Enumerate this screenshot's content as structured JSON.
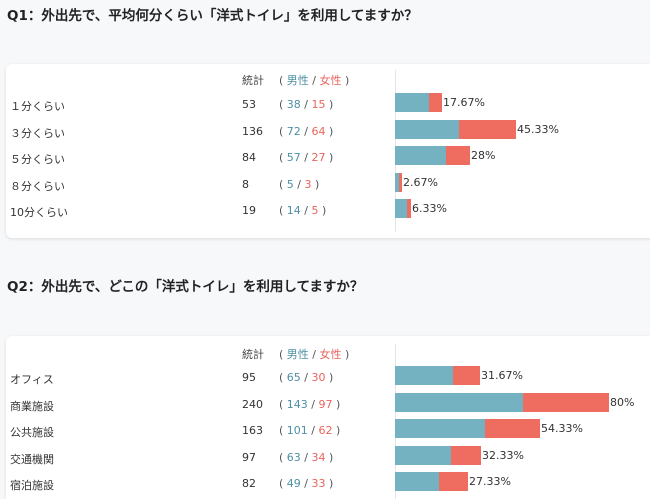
{
  "sections": [
    {
      "title": "Q1：外出先で、平均何分くらい「洋式トイレ」を利用してますか？",
      "header": {
        "total": "統計",
        "open": "(",
        "male": "男性",
        "slash": "/",
        "female": "女性",
        "close": ")"
      },
      "rows": [
        {
          "label": "１分くらい",
          "total": "53",
          "male": "38",
          "female": "15",
          "pct": "17.67%"
        },
        {
          "label": "３分くらい",
          "total": "136",
          "male": "72",
          "female": "64",
          "pct": "45.33%"
        },
        {
          "label": "５分くらい",
          "total": "84",
          "male": "57",
          "female": "27",
          "pct": "28%"
        },
        {
          "label": "８分くらい",
          "total": "8",
          "male": "5",
          "female": "3",
          "pct": "2.67%"
        },
        {
          "label": "10分くらい",
          "total": "19",
          "male": "14",
          "female": "5",
          "pct": "6.33%"
        }
      ]
    },
    {
      "title": "Q2：外出先で、どこの「洋式トイレ」を利用してますか？",
      "header": {
        "total": "統計",
        "open": "(",
        "male": "男性",
        "slash": "/",
        "female": "女性",
        "close": ")"
      },
      "rows": [
        {
          "label": "オフィス",
          "total": "95",
          "male": "65",
          "female": "30",
          "pct": "31.67%"
        },
        {
          "label": "商業施設",
          "total": "240",
          "male": "143",
          "female": "97",
          "pct": "80%"
        },
        {
          "label": "公共施設",
          "total": "163",
          "male": "101",
          "female": "62",
          "pct": "54.33%"
        },
        {
          "label": "交通機関",
          "total": "97",
          "male": "63",
          "female": "34",
          "pct": "32.33%"
        },
        {
          "label": "宿泊施設",
          "total": "82",
          "male": "49",
          "female": "33",
          "pct": "27.33%"
        }
      ]
    }
  ],
  "chart_data": [
    {
      "type": "bar",
      "title": "Q1：外出先で、平均何分くらい「洋式トイレ」を利用してますか？",
      "categories": [
        "１分くらい",
        "３分くらい",
        "５分くらい",
        "８分くらい",
        "10分くらい"
      ],
      "series": [
        {
          "name": "男性",
          "values": [
            38,
            72,
            57,
            5,
            14
          ],
          "color": "#74b1c1"
        },
        {
          "name": "女性",
          "values": [
            15,
            64,
            27,
            3,
            5
          ],
          "color": "#ef6c61"
        }
      ],
      "totals": [
        53,
        136,
        84,
        8,
        19
      ],
      "percent": [
        17.67,
        45.33,
        28,
        2.67,
        6.33
      ]
    },
    {
      "type": "bar",
      "title": "Q2：外出先で、どこの「洋式トイレ」を利用してますか？",
      "categories": [
        "オフィス",
        "商業施設",
        "公共施設",
        "交通機関",
        "宿泊施設"
      ],
      "series": [
        {
          "name": "男性",
          "values": [
            65,
            143,
            101,
            63,
            49
          ],
          "color": "#74b1c1"
        },
        {
          "name": "女性",
          "values": [
            30,
            97,
            62,
            34,
            33
          ],
          "color": "#ef6c61"
        }
      ],
      "totals": [
        95,
        240,
        163,
        97,
        82
      ],
      "percent": [
        31.67,
        80,
        54.33,
        32.33,
        27.33
      ]
    }
  ]
}
